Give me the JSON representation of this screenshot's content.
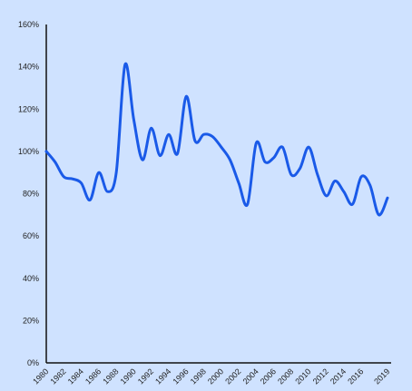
{
  "chart_data": {
    "type": "line",
    "title": "",
    "xlabel": "",
    "ylabel": "",
    "xlim": [
      1980,
      2019
    ],
    "ylim": [
      0,
      160
    ],
    "grid": false,
    "legend": "none",
    "y_ticks": [
      "0%",
      "20%",
      "40%",
      "60%",
      "80%",
      "100%",
      "120%",
      "140%",
      "160%"
    ],
    "y_tick_values": [
      0,
      20,
      40,
      60,
      80,
      100,
      120,
      140,
      160
    ],
    "x_ticks": [
      "1980",
      "1982",
      "1984",
      "1986",
      "1988",
      "1990",
      "1992",
      "1994",
      "1996",
      "1998",
      "2000",
      "2002",
      "2004",
      "2006",
      "2008",
      "2010",
      "2012",
      "2014",
      "2016",
      "2019"
    ],
    "x_tick_values": [
      1980,
      1982,
      1984,
      1986,
      1988,
      1990,
      1992,
      1994,
      1996,
      1998,
      2000,
      2002,
      2004,
      2006,
      2008,
      2010,
      2012,
      2014,
      2016,
      2019
    ],
    "series": [
      {
        "color": "#1a5ae8",
        "x": [
          1980,
          1981,
          1982,
          1983,
          1984,
          1985,
          1986,
          1987,
          1988,
          1989,
          1990,
          1991,
          1992,
          1993,
          1994,
          1995,
          1996,
          1997,
          1998,
          1999,
          2000,
          2001,
          2002,
          2003,
          2004,
          2005,
          2006,
          2007,
          2008,
          2009,
          2010,
          2011,
          2012,
          2013,
          2014,
          2015,
          2016,
          2017,
          2018,
          2019
        ],
        "y": [
          100,
          95,
          88,
          87,
          85,
          77,
          90,
          81,
          90,
          141,
          115,
          96,
          111,
          98,
          108,
          99,
          126,
          105,
          108,
          107,
          102,
          96,
          85,
          75,
          104,
          95,
          97,
          102,
          89,
          92,
          102,
          89,
          79,
          86,
          81,
          75,
          88,
          84,
          70,
          78
        ]
      }
    ]
  },
  "colors": {
    "plot_background": "#cfe2ff",
    "axis": "#111111",
    "line": "#1a5ae8"
  }
}
